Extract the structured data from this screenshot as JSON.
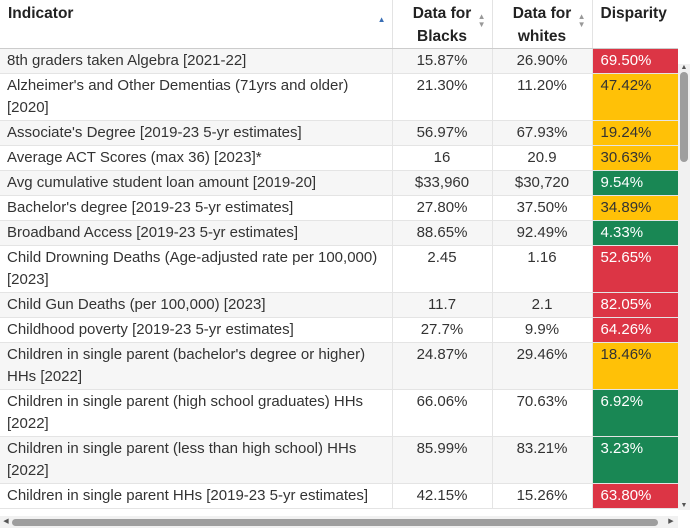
{
  "colors": {
    "red": "#dc3545",
    "yellow": "#ffc107",
    "green": "#198754"
  },
  "headers": {
    "indicator": "Indicator",
    "blacks_line1": "Data for",
    "blacks_line2": "Blacks",
    "whites_line1": "Data for",
    "whites_line2": "whites",
    "disparity": "Disparity"
  },
  "icons": {
    "sort_active": "sort-up-icon",
    "sort_neutral": "sort-both-icon"
  },
  "rows": [
    {
      "indicator": "8th graders taken Algebra [2021-22]",
      "blacks": "15.87%",
      "whites": "26.90%",
      "disparity": "69.50%",
      "level": "red"
    },
    {
      "indicator": "Alzheimer's and Other Dementias (71yrs and older) [2020]",
      "blacks": "21.30%",
      "whites": "11.20%",
      "disparity": "47.42%",
      "level": "yellow"
    },
    {
      "indicator": "Associate's Degree [2019-23 5-yr estimates]",
      "blacks": "56.97%",
      "whites": "67.93%",
      "disparity": "19.24%",
      "level": "yellow"
    },
    {
      "indicator": "Average ACT Scores (max 36) [2023]*",
      "blacks": "16",
      "whites": "20.9",
      "disparity": "30.63%",
      "level": "yellow"
    },
    {
      "indicator": "Avg cumulative student loan amount [2019-20]",
      "blacks": "$33,960",
      "whites": "$30,720",
      "disparity": "9.54%",
      "level": "green"
    },
    {
      "indicator": "Bachelor's degree [2019-23 5-yr estimates]",
      "blacks": "27.80%",
      "whites": "37.50%",
      "disparity": "34.89%",
      "level": "yellow"
    },
    {
      "indicator": "Broadband Access [2019-23 5-yr estimates]",
      "blacks": "88.65%",
      "whites": "92.49%",
      "disparity": "4.33%",
      "level": "green"
    },
    {
      "indicator": "Child Drowning Deaths (Age-adjusted rate per 100,000) [2023]",
      "blacks": "2.45",
      "whites": "1.16",
      "disparity": "52.65%",
      "level": "red"
    },
    {
      "indicator": "Child Gun Deaths (per 100,000) [2023]",
      "blacks": "11.7",
      "whites": "2.1",
      "disparity": "82.05%",
      "level": "red"
    },
    {
      "indicator": "Childhood poverty [2019-23 5-yr estimates]",
      "blacks": "27.7%",
      "whites": "9.9%",
      "disparity": "64.26%",
      "level": "red"
    },
    {
      "indicator": "Children in single parent (bachelor's degree or higher) HHs [2022]",
      "blacks": "24.87%",
      "whites": "29.46%",
      "disparity": "18.46%",
      "level": "yellow"
    },
    {
      "indicator": "Children in single parent (high school graduates) HHs [2022]",
      "blacks": "66.06%",
      "whites": "70.63%",
      "disparity": "6.92%",
      "level": "green"
    },
    {
      "indicator": "Children in single parent (less than high school) HHs [2022]",
      "blacks": "85.99%",
      "whites": "83.21%",
      "disparity": "3.23%",
      "level": "green"
    },
    {
      "indicator": "Children in single parent HHs [2019-23 5-yr estimates]",
      "blacks": "42.15%",
      "whites": "15.26%",
      "disparity": "63.80%",
      "level": "red"
    }
  ]
}
